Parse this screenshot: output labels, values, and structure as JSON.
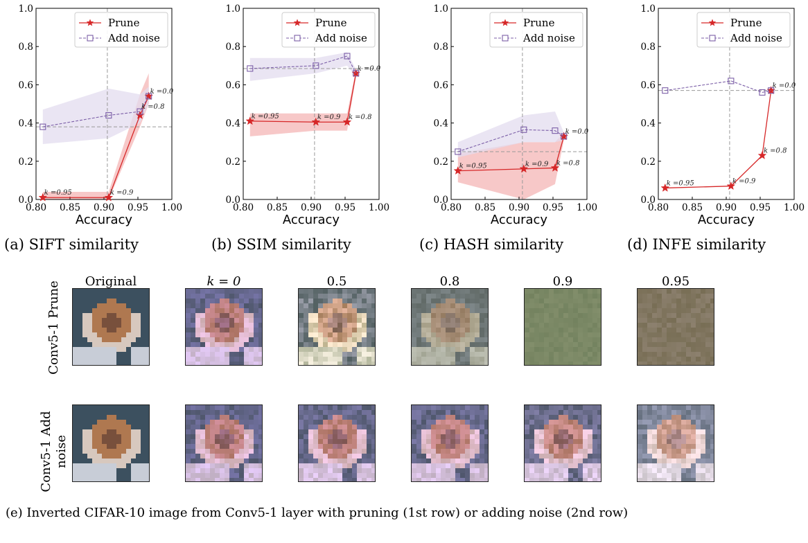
{
  "chart_data": [
    {
      "type": "line",
      "caption": "(a) SIFT similarity",
      "xlabel": "Accuracy",
      "xlim": [
        0.8,
        1.0
      ],
      "ylim": [
        0.0,
        1.0
      ],
      "xticks": [
        "0.80",
        "0.85",
        "0.90",
        "0.95",
        "1.00"
      ],
      "yticks": [
        "0.0",
        "0.2",
        "0.4",
        "0.6",
        "0.8",
        "1.0"
      ],
      "legend": "top-right",
      "vline": 0.905,
      "hline": 0.38,
      "series": [
        {
          "name": "Prune",
          "color": "#d62728",
          "x": [
            0.81,
            0.907,
            0.953,
            0.966
          ],
          "y": [
            0.01,
            0.01,
            0.44,
            0.54
          ],
          "labels": [
            "k =0.95",
            "k =0.9",
            "",
            "k =0.0"
          ],
          "band_upper": [
            0.04,
            0.04,
            0.55,
            0.66
          ],
          "band_lower": [
            0.0,
            0.0,
            0.38,
            0.5
          ]
        },
        {
          "name": "Add noise",
          "color": "#7b5ea7",
          "x": [
            0.81,
            0.907,
            0.953,
            0.966
          ],
          "y": [
            0.38,
            0.44,
            0.46,
            0.54
          ],
          "labels": [
            "",
            "",
            "k =0.8",
            ""
          ],
          "band_upper": [
            0.47,
            0.58,
            0.55,
            0.59
          ],
          "band_lower": [
            0.29,
            0.32,
            0.4,
            0.5
          ]
        }
      ]
    },
    {
      "type": "line",
      "caption": "(b) SSIM similarity",
      "xlabel": "Accuracy",
      "xlim": [
        0.8,
        1.0
      ],
      "ylim": [
        0.0,
        1.0
      ],
      "xticks": [
        "0.80",
        "0.85",
        "0.90",
        "0.95",
        "1.00"
      ],
      "yticks": [
        "0.0",
        "0.2",
        "0.4",
        "0.6",
        "0.8",
        "1.0"
      ],
      "legend": "top-right",
      "vline": 0.905,
      "hline": 0.685,
      "series": [
        {
          "name": "Prune",
          "color": "#d62728",
          "x": [
            0.81,
            0.907,
            0.953,
            0.966
          ],
          "y": [
            0.41,
            0.405,
            0.405,
            0.66
          ],
          "labels": [
            "k =0.95",
            "k =0.9",
            "k =0.8",
            "k =0.0"
          ],
          "band_upper": [
            0.45,
            0.45,
            0.45,
            0.68
          ],
          "band_lower": [
            0.33,
            0.36,
            0.36,
            0.64
          ]
        },
        {
          "name": "Add noise",
          "color": "#7b5ea7",
          "x": [
            0.81,
            0.907,
            0.953,
            0.966
          ],
          "y": [
            0.685,
            0.7,
            0.75,
            0.66
          ],
          "labels": [
            "",
            "",
            "",
            ""
          ],
          "band_upper": [
            0.74,
            0.74,
            0.77,
            0.68
          ],
          "band_lower": [
            0.62,
            0.66,
            0.7,
            0.64
          ]
        }
      ]
    },
    {
      "type": "line",
      "caption": "(c) HASH similarity",
      "xlabel": "Accuracy",
      "xlim": [
        0.8,
        1.0
      ],
      "ylim": [
        0.0,
        1.0
      ],
      "xticks": [
        "0.80",
        "0.85",
        "0.90",
        "0.95",
        "1.00"
      ],
      "yticks": [
        "0.0",
        "0.2",
        "0.4",
        "0.6",
        "0.8",
        "1.0"
      ],
      "legend": "top-right",
      "vline": 0.905,
      "hline": 0.25,
      "series": [
        {
          "name": "Prune",
          "color": "#d62728",
          "x": [
            0.81,
            0.907,
            0.953,
            0.966
          ],
          "y": [
            0.15,
            0.16,
            0.165,
            0.33
          ],
          "labels": [
            "k =0.95",
            "k =0.9",
            "k =0.8",
            "k =0.0"
          ],
          "band_upper": [
            0.24,
            0.3,
            0.3,
            0.35
          ],
          "band_lower": [
            0.09,
            0.0,
            0.08,
            0.31
          ]
        },
        {
          "name": "Add noise",
          "color": "#7b5ea7",
          "x": [
            0.81,
            0.907,
            0.953,
            0.966
          ],
          "y": [
            0.25,
            0.365,
            0.36,
            0.33
          ],
          "labels": [
            "",
            "",
            "",
            ""
          ],
          "band_upper": [
            0.3,
            0.44,
            0.46,
            0.35
          ],
          "band_lower": [
            0.22,
            0.3,
            0.3,
            0.31
          ]
        }
      ]
    },
    {
      "type": "line",
      "caption": "(d) INFE similarity",
      "xlabel": "Accuracy",
      "xlim": [
        0.8,
        1.0
      ],
      "ylim": [
        0.0,
        1.0
      ],
      "xticks": [
        "0.80",
        "0.85",
        "0.90",
        "0.95",
        "1.00"
      ],
      "yticks": [
        "0.0",
        "0.2",
        "0.4",
        "0.6",
        "0.8",
        "1.0"
      ],
      "legend": "top-right",
      "vline": 0.905,
      "hline": 0.57,
      "series": [
        {
          "name": "Prune",
          "color": "#d62728",
          "x": [
            0.81,
            0.907,
            0.953,
            0.966
          ],
          "y": [
            0.06,
            0.07,
            0.23,
            0.57
          ],
          "labels": [
            "k =0.95",
            "k =0.9",
            "k =0.8",
            "k =0.0"
          ],
          "band_upper": null,
          "band_lower": null
        },
        {
          "name": "Add noise",
          "color": "#7b5ea7",
          "x": [
            0.81,
            0.907,
            0.953,
            0.966
          ],
          "y": [
            0.57,
            0.62,
            0.56,
            0.57
          ],
          "labels": [
            "",
            "",
            "",
            ""
          ],
          "band_upper": null,
          "band_lower": null
        }
      ]
    }
  ],
  "grid": {
    "column_headers": [
      "Original",
      "k = 0",
      "0.5",
      "0.8",
      "0.9",
      "0.95"
    ],
    "row_headers": [
      "Conv5-1 Prune",
      "Conv5-1 Add noise"
    ],
    "caption": "(e) Inverted CIFAR-10 image from Conv5-1 layer with pruning (1st row) or adding noise (2nd row)"
  },
  "colors": {
    "prune": "#d62728",
    "noise": "#7b5ea7",
    "prune_band": "#f4b6b6",
    "noise_band": "#e3dcef"
  }
}
